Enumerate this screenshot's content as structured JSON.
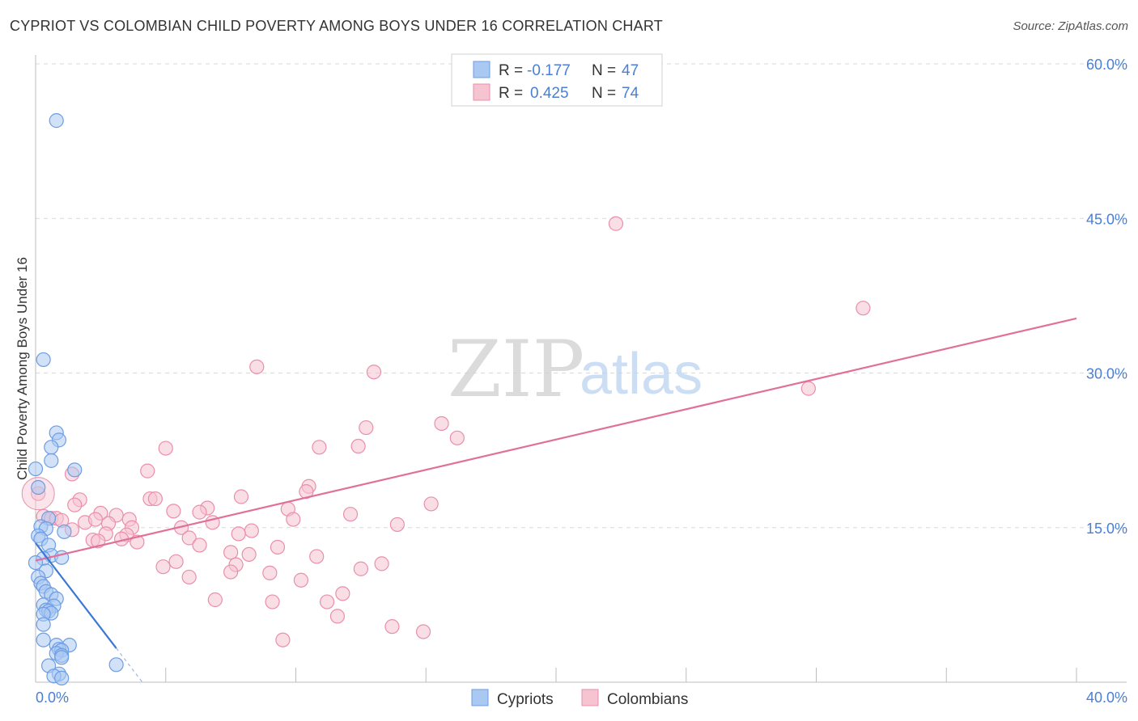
{
  "header": {
    "title": "CYPRIOT VS COLOMBIAN CHILD POVERTY AMONG BOYS UNDER 16 CORRELATION CHART",
    "source": "Source: ZipAtlas.com"
  },
  "watermark": {
    "zip": "ZIP",
    "atlas": "atlas"
  },
  "colors": {
    "blue_fill": "#a9c8f2",
    "blue_stroke": "#6d9de3",
    "blue_line": "#3a78d4",
    "pink_fill": "#f6c3d1",
    "pink_stroke": "#e98fab",
    "pink_line": "#e0709a",
    "grid": "#d9d9d9",
    "tick_label": "#4a7fd4"
  },
  "legend": {
    "r_label": "R =",
    "n_label": "N =",
    "rows": [
      {
        "series": "Cypriots",
        "r": "-0.177",
        "n": "47",
        "color": "blue"
      },
      {
        "series": "Colombians",
        "r": "0.425",
        "n": "74",
        "color": "pink"
      }
    ]
  },
  "chart_data": {
    "type": "scatter",
    "title": "CYPRIOT VS COLOMBIAN CHILD POVERTY AMONG BOYS UNDER 16 CORRELATION CHART",
    "xlabel": "",
    "ylabel": "Child Poverty Among Boys Under 16",
    "xlim": [
      0,
      40
    ],
    "ylim": [
      0,
      60
    ],
    "x_tick_labels": [
      "0.0%",
      "40.0%"
    ],
    "y_ticks": [
      15,
      30,
      45,
      60
    ],
    "y_tick_labels": [
      "15.0%",
      "30.0%",
      "45.0%",
      "60.0%"
    ],
    "grid": true,
    "legend_position": "top-center",
    "series": [
      {
        "name": "Cypriots",
        "color": "blue",
        "r": -0.177,
        "n": 47,
        "trend": {
          "x0": 0.0,
          "y0": 13.5,
          "x1": 3.1,
          "y1": 3.3,
          "dash_to_x": 4.1
        },
        "points": [
          [
            0.8,
            54.5
          ],
          [
            0.3,
            31.3
          ],
          [
            0.8,
            24.2
          ],
          [
            0.9,
            23.5
          ],
          [
            0.6,
            22.8
          ],
          [
            0.6,
            21.5
          ],
          [
            1.5,
            20.6
          ],
          [
            0.0,
            20.7
          ],
          [
            0.1,
            18.9
          ],
          [
            0.5,
            15.9
          ],
          [
            0.2,
            15.1
          ],
          [
            0.4,
            14.9
          ],
          [
            1.1,
            14.6
          ],
          [
            0.1,
            14.2
          ],
          [
            0.2,
            13.9
          ],
          [
            0.5,
            13.3
          ],
          [
            0.6,
            12.3
          ],
          [
            1.0,
            12.1
          ],
          [
            0.3,
            12.0
          ],
          [
            0.0,
            11.6
          ],
          [
            0.4,
            10.8
          ],
          [
            0.1,
            10.2
          ],
          [
            0.2,
            9.6
          ],
          [
            0.3,
            9.3
          ],
          [
            0.4,
            8.8
          ],
          [
            0.6,
            8.5
          ],
          [
            0.8,
            8.1
          ],
          [
            0.3,
            7.5
          ],
          [
            0.7,
            7.4
          ],
          [
            0.4,
            7.0
          ],
          [
            0.5,
            6.9
          ],
          [
            0.6,
            6.7
          ],
          [
            0.3,
            6.6
          ],
          [
            0.3,
            5.6
          ],
          [
            0.3,
            4.1
          ],
          [
            0.8,
            3.6
          ],
          [
            1.3,
            3.6
          ],
          [
            0.9,
            3.2
          ],
          [
            1.0,
            3.1
          ],
          [
            0.8,
            2.8
          ],
          [
            1.0,
            2.6
          ],
          [
            1.0,
            2.4
          ],
          [
            3.1,
            1.7
          ],
          [
            0.5,
            1.6
          ],
          [
            0.9,
            0.8
          ],
          [
            0.7,
            0.6
          ],
          [
            1.0,
            0.4
          ]
        ]
      },
      {
        "name": "Colombians",
        "color": "pink",
        "r": 0.425,
        "n": 74,
        "trend": {
          "x0": 0.0,
          "y0": 11.8,
          "x1": 40.0,
          "y1": 35.3
        },
        "points": [
          [
            22.3,
            44.5
          ],
          [
            31.8,
            36.3
          ],
          [
            8.5,
            30.6
          ],
          [
            13.0,
            30.1
          ],
          [
            29.7,
            28.5
          ],
          [
            15.6,
            25.1
          ],
          [
            12.7,
            24.7
          ],
          [
            16.2,
            23.7
          ],
          [
            5.0,
            22.7
          ],
          [
            10.9,
            22.8
          ],
          [
            12.4,
            22.9
          ],
          [
            4.3,
            20.5
          ],
          [
            1.4,
            20.2
          ],
          [
            10.5,
            19.0
          ],
          [
            10.4,
            18.5
          ],
          [
            0.1,
            18.3
          ],
          [
            7.9,
            18.0
          ],
          [
            1.7,
            17.7
          ],
          [
            4.4,
            17.8
          ],
          [
            4.6,
            17.8
          ],
          [
            1.5,
            17.2
          ],
          [
            15.2,
            17.3
          ],
          [
            6.6,
            16.9
          ],
          [
            9.7,
            16.8
          ],
          [
            5.3,
            16.6
          ],
          [
            2.5,
            16.4
          ],
          [
            6.3,
            16.5
          ],
          [
            3.1,
            16.2
          ],
          [
            12.1,
            16.3
          ],
          [
            0.3,
            16.1
          ],
          [
            0.6,
            15.9
          ],
          [
            9.9,
            15.8
          ],
          [
            3.6,
            15.8
          ],
          [
            0.8,
            15.9
          ],
          [
            1.0,
            15.7
          ],
          [
            2.8,
            15.4
          ],
          [
            1.9,
            15.5
          ],
          [
            6.8,
            15.5
          ],
          [
            13.9,
            15.3
          ],
          [
            3.7,
            15.0
          ],
          [
            5.6,
            15.0
          ],
          [
            1.4,
            14.8
          ],
          [
            8.3,
            14.7
          ],
          [
            7.8,
            14.4
          ],
          [
            2.7,
            14.4
          ],
          [
            3.5,
            14.3
          ],
          [
            5.9,
            14.0
          ],
          [
            3.3,
            13.9
          ],
          [
            2.2,
            13.8
          ],
          [
            2.4,
            13.7
          ],
          [
            3.9,
            13.6
          ],
          [
            6.3,
            13.3
          ],
          [
            9.3,
            13.1
          ],
          [
            7.5,
            12.6
          ],
          [
            8.2,
            12.4
          ],
          [
            10.8,
            12.2
          ],
          [
            5.4,
            11.7
          ],
          [
            7.7,
            11.4
          ],
          [
            13.3,
            11.5
          ],
          [
            4.9,
            11.2
          ],
          [
            12.5,
            11.0
          ],
          [
            7.5,
            10.7
          ],
          [
            9.0,
            10.6
          ],
          [
            5.9,
            10.2
          ],
          [
            10.2,
            9.9
          ],
          [
            11.8,
            8.6
          ],
          [
            6.9,
            8.0
          ],
          [
            9.1,
            7.8
          ],
          [
            11.2,
            7.8
          ],
          [
            11.6,
            6.4
          ],
          [
            13.7,
            5.4
          ],
          [
            14.9,
            4.9
          ],
          [
            9.5,
            4.1
          ],
          [
            2.3,
            15.8
          ]
        ]
      }
    ]
  }
}
